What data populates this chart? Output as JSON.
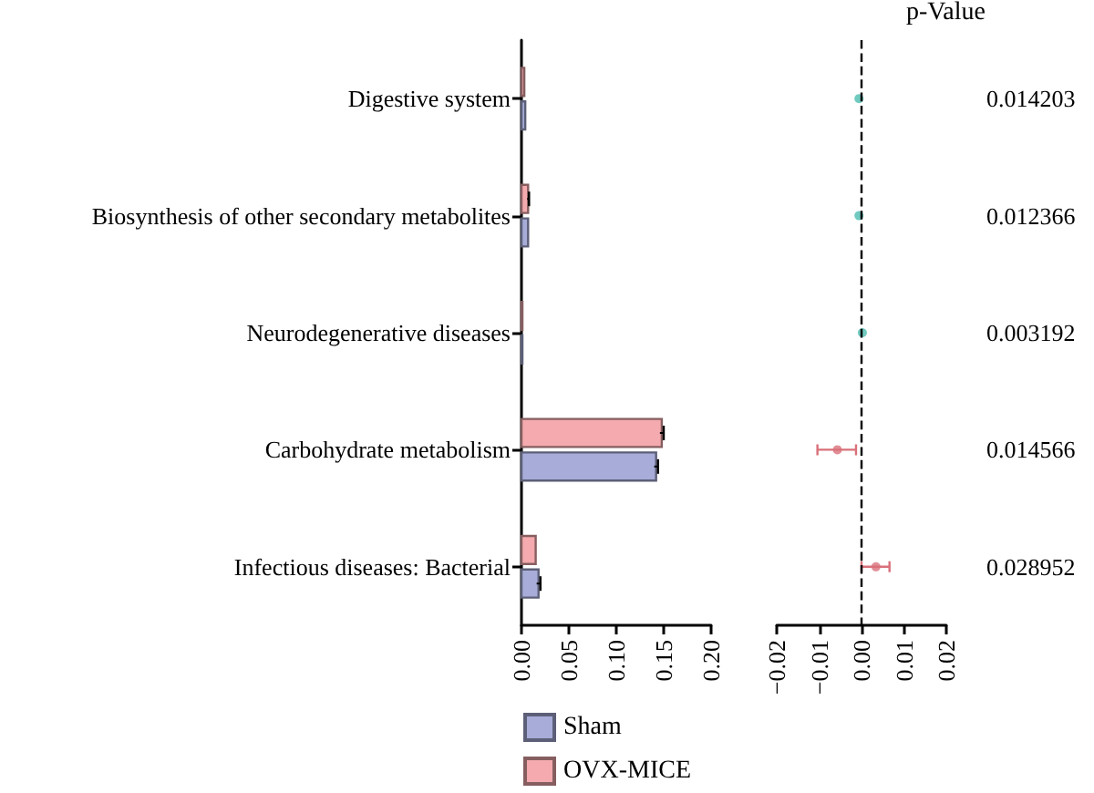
{
  "chart_data": [
    {
      "type": "bar",
      "orientation": "horizontal",
      "categories": [
        "Digestive system",
        "Biosynthesis of other secondary metabolites",
        "Neurodegenerative diseases",
        "Carbohydrate metabolism",
        "Infectious diseases: Bacterial"
      ],
      "series": [
        {
          "name": "Sham",
          "color": "#a7acd8",
          "values": [
            0.004,
            0.007,
            0.001,
            0.142,
            0.018
          ],
          "errors": [
            null,
            null,
            null,
            0.002,
            0.002
          ]
        },
        {
          "name": "OVX-MICE",
          "color": "#f4aaae",
          "values": [
            0.003,
            0.007,
            0.001,
            0.148,
            0.015
          ],
          "errors": [
            null,
            0.001,
            null,
            0.002,
            null
          ]
        }
      ],
      "xlim": [
        0,
        0.2
      ],
      "xticks": [
        {
          "value": 0,
          "label": "0.00"
        },
        {
          "value": 0.05,
          "label": "0.05"
        },
        {
          "value": 0.1,
          "label": "0.10"
        },
        {
          "value": 0.15,
          "label": "0.15"
        },
        {
          "value": 0.2,
          "label": "0.20"
        }
      ],
      "grid": false,
      "legend": "bottom"
    },
    {
      "type": "scatter",
      "orientation": "horizontal",
      "ylabel": "p-Value",
      "categories": [
        "0.014203",
        "0.012366",
        "0.003192",
        "0.014566",
        "0.028952"
      ],
      "values": [
        -0.0006,
        -0.0006,
        0.0002,
        -0.0057,
        0.0034
      ],
      "errors": [
        null,
        null,
        null,
        [
          -0.0104,
          -0.0013
        ],
        [
          0.0,
          0.0066
        ]
      ],
      "colors": [
        "#4dbdb0",
        "#4dbdb0",
        "#4dbdb0",
        "#d9707a",
        "#d9707a"
      ],
      "xlim": [
        -0.02,
        0.02
      ],
      "xticks": [
        {
          "value": -0.02,
          "label": "−0.02"
        },
        {
          "value": -0.01,
          "label": "−0.01"
        },
        {
          "value": 0,
          "label": "0.00"
        },
        {
          "value": 0.01,
          "label": "0.01"
        },
        {
          "value": 0.02,
          "label": "0.02"
        }
      ],
      "ref_lines": [
        {
          "axis": "x",
          "value": 0,
          "line_style": "dashed",
          "color": "#000000"
        }
      ],
      "grid": false,
      "legend": false
    }
  ]
}
